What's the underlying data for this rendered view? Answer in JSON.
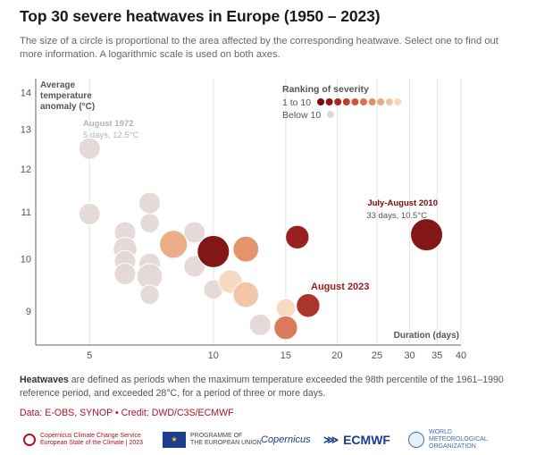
{
  "header": {
    "title": "Top 30 severe heatwaves in Europe (1950 – 2023)",
    "subtitle": "The size of a circle is proportional to the area affected by the corresponding heatwave. Select one to find out more information. A logarithmic scale is used on both axes."
  },
  "chart_data": {
    "type": "scatter",
    "title": "Top 30 severe heatwaves in Europe (1950 – 2023)",
    "xlabel": "Duration (days)",
    "ylabel_lines": [
      "Average",
      "temperature",
      "anomaly (°C)"
    ],
    "xscale": "log",
    "yscale": "log",
    "xlim": [
      3.7,
      40
    ],
    "ylim": [
      8.4,
      14.4
    ],
    "x_ticks": [
      5,
      10,
      15,
      20,
      25,
      30,
      35,
      40
    ],
    "y_ticks": [
      9,
      10,
      11,
      12,
      13,
      14
    ],
    "grid": "vertical",
    "legend": {
      "title": "Ranking of severity",
      "top_label": "1 to 10",
      "bottom_label": "Below 10",
      "rank_colors": [
        "#7c0a0a",
        "#911515",
        "#a52a20",
        "#b8402f",
        "#c95a40",
        "#d97452",
        "#e48e66",
        "#ecaa84",
        "#f2c3a3",
        "#f6d8be"
      ],
      "below_color": "#e3d6d4",
      "position": "top-right"
    },
    "annotations": [
      {
        "id": "1972",
        "title": "August 1972",
        "detail": "5 days, 12.5°C",
        "color": "#b3b3b3"
      },
      {
        "id": "2010",
        "title": "July-August 2010",
        "detail": "33 days, 10.5°C",
        "color": "#7c0a0a"
      },
      {
        "id": "2023",
        "title": "August 2023",
        "detail": "",
        "color": "#9a1b1b"
      }
    ],
    "points": [
      {
        "x": 5,
        "y": 12.5,
        "rank": "below",
        "size": 1.0
      },
      {
        "x": 5,
        "y": 10.95,
        "rank": "below",
        "size": 1.0
      },
      {
        "x": 6.1,
        "y": 10.55,
        "rank": "below",
        "size": 1.0
      },
      {
        "x": 6.1,
        "y": 10.2,
        "rank": "below",
        "size": 1.1
      },
      {
        "x": 6.1,
        "y": 9.95,
        "rank": "below",
        "size": 1.0
      },
      {
        "x": 6.1,
        "y": 9.7,
        "rank": "below",
        "size": 1.0
      },
      {
        "x": 7.0,
        "y": 11.2,
        "rank": "below",
        "size": 1.0
      },
      {
        "x": 7.0,
        "y": 10.75,
        "rank": "below",
        "size": 0.9
      },
      {
        "x": 7.0,
        "y": 9.9,
        "rank": "below",
        "size": 1.0
      },
      {
        "x": 7.0,
        "y": 9.65,
        "rank": "below",
        "size": 1.2
      },
      {
        "x": 7.0,
        "y": 9.3,
        "rank": "below",
        "size": 0.9
      },
      {
        "x": 8.0,
        "y": 10.25,
        "rank": "below",
        "size": 1.2
      },
      {
        "x": 9.0,
        "y": 10.55,
        "rank": "below",
        "size": 1.0
      },
      {
        "x": 9.0,
        "y": 9.85,
        "rank": "below",
        "size": 1.0
      },
      {
        "x": 10.0,
        "y": 9.4,
        "rank": "below",
        "size": 0.9
      },
      {
        "x": 13.0,
        "y": 8.75,
        "rank": "below",
        "size": 1.0
      },
      {
        "x": 8.0,
        "y": 10.3,
        "rank": 8,
        "size": 1.3
      },
      {
        "x": 10.0,
        "y": 10.15,
        "rank": 1,
        "size": 1.5
      },
      {
        "x": 11.0,
        "y": 9.55,
        "rank": 10,
        "size": 1.1
      },
      {
        "x": 12.0,
        "y": 10.2,
        "rank": 7,
        "size": 1.2
      },
      {
        "x": 12.0,
        "y": 9.3,
        "rank": 9,
        "size": 1.2
      },
      {
        "x": 15.0,
        "y": 9.05,
        "rank": 10,
        "size": 0.9
      },
      {
        "x": 15.0,
        "y": 8.7,
        "rank": 6,
        "size": 1.1
      },
      {
        "x": 16.0,
        "y": 10.45,
        "rank": 2,
        "size": 1.1
      },
      {
        "x": 17.0,
        "y": 9.1,
        "rank": 3,
        "size": 1.1
      },
      {
        "x": 33.0,
        "y": 10.5,
        "rank": 1,
        "size": 1.5
      }
    ]
  },
  "footnote": {
    "bold": "Heatwaves",
    "text": " are defined as periods when the maximum temperature exceeded the 98th percentile of the 1961–1990 reference period, and exceeded 28°C, for a period of three or more days."
  },
  "source": "Data: E-OBS, SYNOP • Credit: DWD/C3S/ECMWF",
  "logos": {
    "c3s_line1": "Copernicus Climate Change Service",
    "c3s_line2": "European State of the Climate | 2023",
    "eu_line1": "PROGRAMME OF",
    "eu_line2": "THE EUROPEAN UNION",
    "copernicus": "Copernicus",
    "ecmwf": "ECMWF",
    "wmo_line1": "WORLD",
    "wmo_line2": "METEOROLOGICAL",
    "wmo_line3": "ORGANIZATION"
  }
}
